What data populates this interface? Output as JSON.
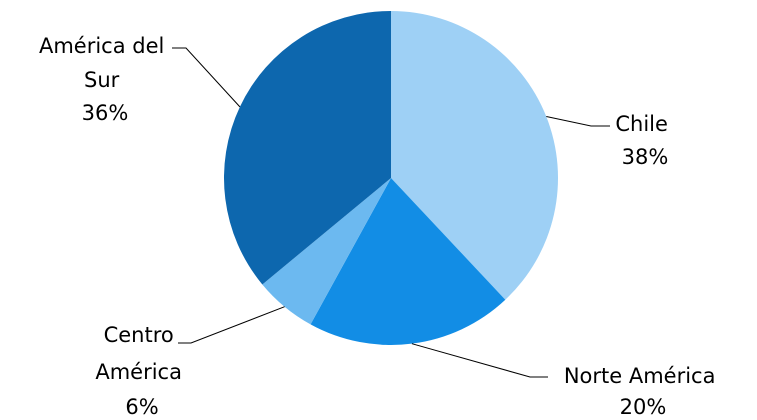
{
  "chart_data": {
    "type": "pie",
    "start_angle_deg": 0,
    "direction": "clockwise",
    "slices": [
      {
        "name": "Chile",
        "label_lines": [
          "Chile"
        ],
        "value": 38,
        "pct_label": "38%",
        "color": "#9ED0F5"
      },
      {
        "name": "Norte América",
        "label_lines": [
          "Norte América"
        ],
        "value": 20,
        "pct_label": "20%",
        "color": "#128DE5"
      },
      {
        "name": "Centro América",
        "label_lines": [
          "Centro",
          "América"
        ],
        "value": 6,
        "pct_label": "6%",
        "color": "#6CB9F0"
      },
      {
        "name": "América del Sur",
        "label_lines": [
          "América del",
          "Sur"
        ],
        "value": 36,
        "pct_label": "36%",
        "color": "#0D67AE"
      }
    ]
  }
}
